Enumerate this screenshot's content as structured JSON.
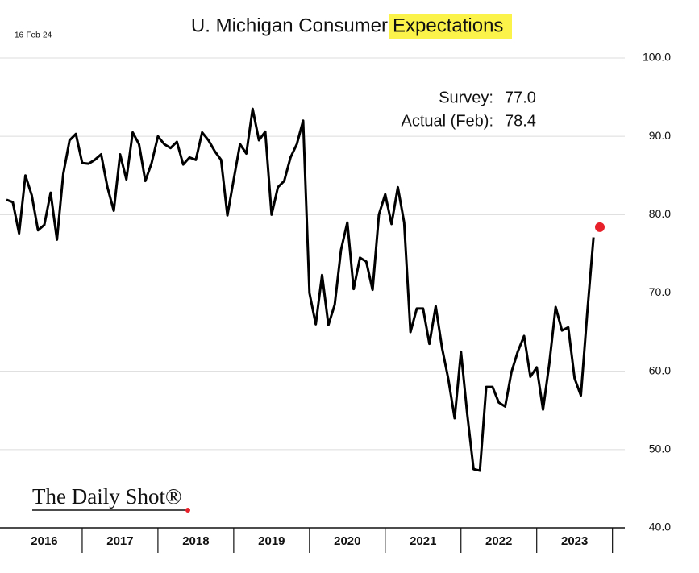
{
  "chart_data": {
    "type": "line",
    "title": "U. Michigan Consumer",
    "title_highlight": "Expectations",
    "date": "16-Feb-24",
    "source": "The Daily Shot®",
    "annotations": [
      {
        "label": "Survey:",
        "value": "77.0"
      },
      {
        "label": "Actual (Feb):",
        "value": "78.4"
      }
    ],
    "years": [
      "2016",
      "2017",
      "2018",
      "2019",
      "2020",
      "2021",
      "2022",
      "2023"
    ],
    "color": "#000000",
    "highlight_color": "#e8202a",
    "values": [
      81.9,
      81.6,
      77.6,
      85,
      82.5,
      78,
      78.7,
      82.8,
      76.8,
      85.2,
      89.5,
      90.3,
      86.6,
      86.5,
      87,
      87.7,
      83.5,
      80.5,
      87.7,
      84.5,
      90.5,
      89,
      84.3,
      86.6,
      90,
      89,
      88.5,
      89.3,
      86.4,
      87.3,
      87,
      90.5,
      89.5,
      88.1,
      87,
      79.9,
      84.5,
      89,
      87.8,
      93.5,
      89.5,
      90.6,
      80,
      83.5,
      84.3,
      87.3,
      89,
      92,
      70,
      66,
      72.3,
      65.9,
      68.5,
      75.5,
      79,
      70.5,
      74.5,
      74,
      70.4,
      80,
      82.6,
      78.8,
      83.5,
      79,
      65,
      68,
      68,
      63.5,
      68.3,
      63,
      59,
      54,
      62.5,
      54.5,
      47.5,
      47.3,
      58,
      58,
      56,
      55.5,
      59.9,
      62.5,
      64.5,
      59.3,
      60.5,
      55.1,
      61,
      68.2,
      65.2,
      65.6,
      59.1,
      56.9,
      67.4,
      77.1,
      78.4
    ],
    "ylim": [
      40,
      100
    ],
    "yticks": [
      {
        "value": 40,
        "label": "40.0"
      },
      {
        "value": 50,
        "label": "50.0"
      },
      {
        "value": 60,
        "label": "60.0"
      },
      {
        "value": 70,
        "label": "70.0"
      },
      {
        "value": 80,
        "label": "80.0"
      },
      {
        "value": 90,
        "label": "90.0"
      },
      {
        "value": 100,
        "label": "100.0"
      }
    ],
    "grid": true
  }
}
